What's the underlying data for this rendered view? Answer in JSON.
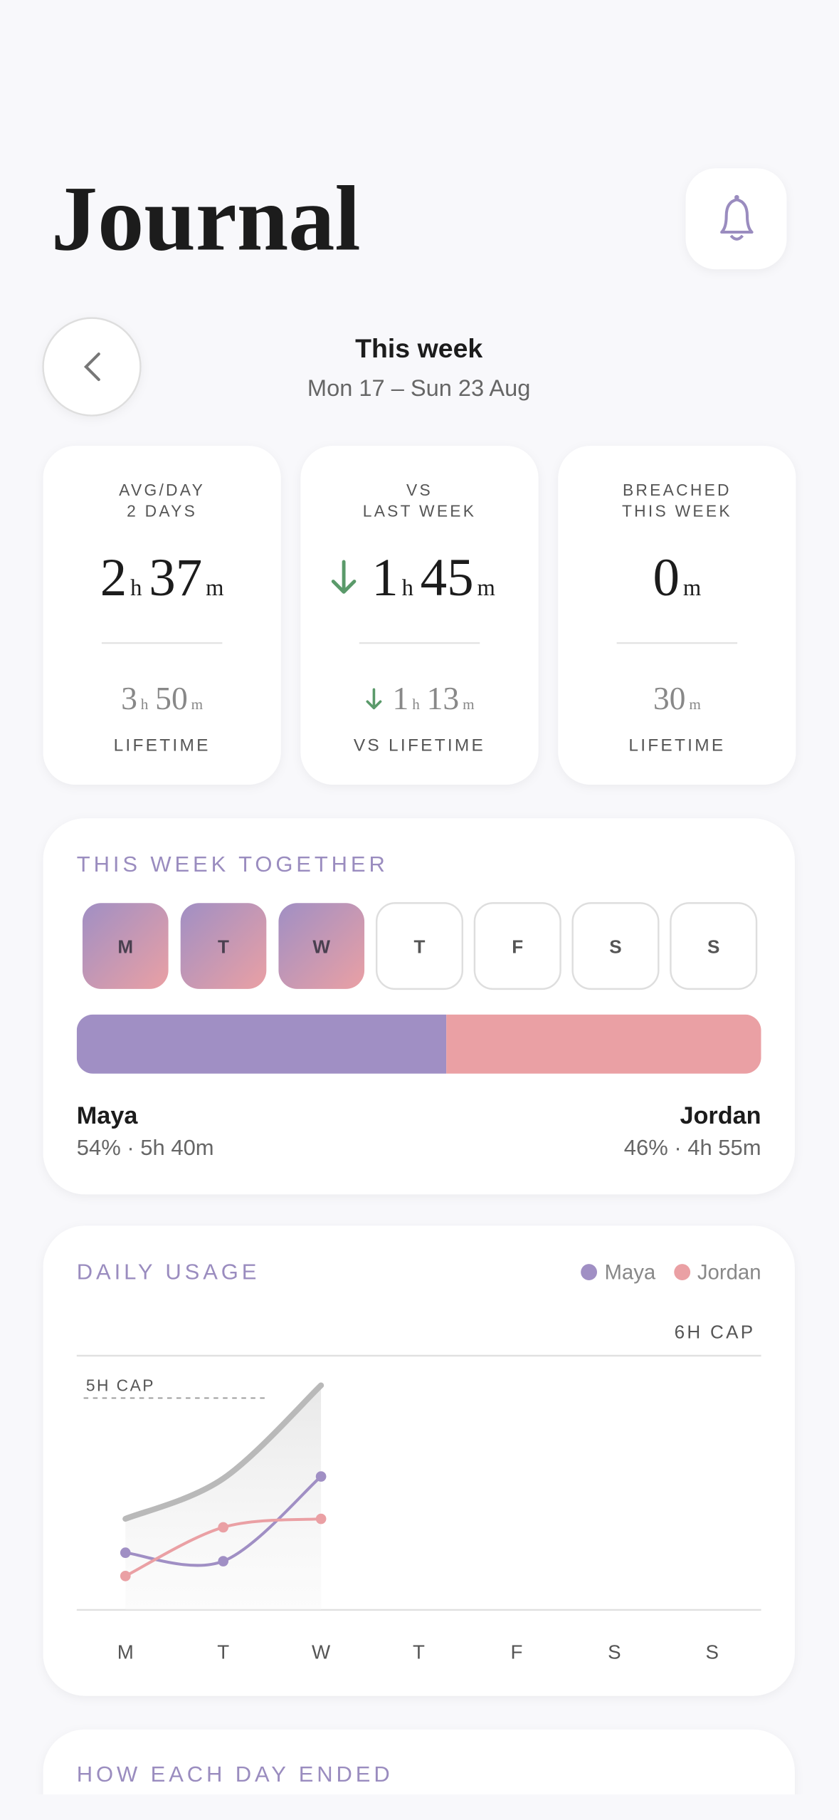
{
  "header": {
    "title": "Journal"
  },
  "week": {
    "title": "This week",
    "range": "Mon 17 – Sun 23 Aug"
  },
  "stats": [
    {
      "label": [
        "AVG/DAY",
        "2 DAYS"
      ],
      "main": [
        {
          "value": 2,
          "unit": "h"
        },
        {
          "value": 37,
          "unit": "m"
        }
      ],
      "sub": [
        {
          "value": 3,
          "unit": "h"
        },
        {
          "value": 50,
          "unit": "m"
        }
      ],
      "footer": "LIFETIME"
    },
    {
      "label": [
        "VS",
        "LAST WEEK"
      ],
      "trend": "down",
      "main": [
        {
          "value": 1,
          "unit": "h"
        },
        {
          "value": 45,
          "unit": "m"
        }
      ],
      "sub": [
        {
          "value": 1,
          "unit": "h"
        },
        {
          "value": 13,
          "unit": "m"
        }
      ],
      "footer": "VS LIFETIME"
    },
    {
      "label": [
        "BREACHED",
        "THIS WEEK"
      ],
      "main": [
        {
          "value": 0,
          "unit": "m"
        }
      ],
      "sub": [
        {
          "value": 30,
          "unit": "m"
        }
      ],
      "footer": "LIFETIME"
    }
  ],
  "together": {
    "title": "THIS WEEK TOGETHER",
    "days": [
      {
        "label": "M",
        "filled": true
      },
      {
        "label": "T",
        "filled": true
      },
      {
        "label": "W",
        "filled": true
      },
      {
        "label": "T",
        "filled": false
      },
      {
        "label": "F",
        "filled": false
      },
      {
        "label": "S",
        "filled": false
      },
      {
        "label": "S",
        "filled": false
      }
    ],
    "people": [
      {
        "name": "Maya",
        "share": 54,
        "detail": "54% · 5h 40m",
        "color": "#a08fc4"
      },
      {
        "name": "Jordan",
        "share": 46,
        "detail": "46% · 4h 55m",
        "color": "#eaa0a4"
      }
    ]
  },
  "chart_data": {
    "type": "line",
    "title": "DAILY USAGE",
    "categories": [
      "M",
      "T",
      "W",
      "T",
      "F",
      "S",
      "S"
    ],
    "ylim": [
      0,
      6
    ],
    "series": [
      {
        "color": "#b9b9b9",
        "area": true,
        "values": [
          2.15,
          3.1,
          5.3,
          null,
          null,
          null,
          null
        ]
      },
      {
        "name": "Maya",
        "color": "#a08fc4",
        "values": [
          1.35,
          1.15,
          3.15,
          null,
          null,
          null,
          null
        ]
      },
      {
        "name": "Jordan",
        "color": "#eaa0a4",
        "values": [
          0.8,
          1.95,
          2.15,
          null,
          null,
          null,
          null
        ]
      }
    ],
    "reference_lines": [
      {
        "value": 6,
        "label": "6H CAP",
        "style": "solid"
      },
      {
        "value": 5,
        "label": "5H CAP",
        "style": "dashed"
      }
    ]
  },
  "next_section": {
    "title": "HOW EACH DAY ENDED"
  }
}
